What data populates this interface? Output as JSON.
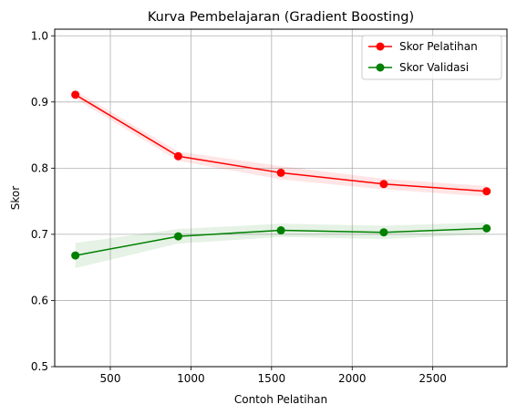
{
  "chart_data": {
    "type": "line",
    "title": "Kurva Pembelajaran (Gradient Boosting)",
    "xlabel": "Contoh Pelatihan",
    "ylabel": "Skor",
    "xlim": [
      155,
      2960
    ],
    "ylim": [
      0.5,
      1.01
    ],
    "x_ticks": [
      500,
      1000,
      1500,
      2000,
      2500
    ],
    "y_ticks": [
      0.5,
      0.6,
      0.7,
      0.8,
      0.9,
      1.0
    ],
    "x_tick_labels": [
      "500",
      "1000",
      "1500",
      "2000",
      "2500"
    ],
    "y_tick_labels": [
      "0.5",
      "0.6",
      "0.7",
      "0.8",
      "0.9",
      "1.0"
    ],
    "grid": true,
    "legend_position": "top-right",
    "x": [
      283,
      921,
      1558,
      2196,
      2834
    ],
    "series": [
      {
        "name": "Skor Pelatihan",
        "color": "#ff0000",
        "band_color": "#ff0000",
        "values": [
          0.911,
          0.818,
          0.793,
          0.776,
          0.765
        ],
        "lower": [
          0.905,
          0.811,
          0.783,
          0.768,
          0.757
        ],
        "upper": [
          0.917,
          0.825,
          0.803,
          0.784,
          0.773
        ]
      },
      {
        "name": "Skor Validasi",
        "color": "#008000",
        "band_color": "#008000",
        "values": [
          0.668,
          0.697,
          0.706,
          0.703,
          0.709
        ],
        "lower": [
          0.649,
          0.686,
          0.696,
          0.693,
          0.7
        ],
        "upper": [
          0.687,
          0.708,
          0.716,
          0.713,
          0.718
        ]
      }
    ]
  }
}
